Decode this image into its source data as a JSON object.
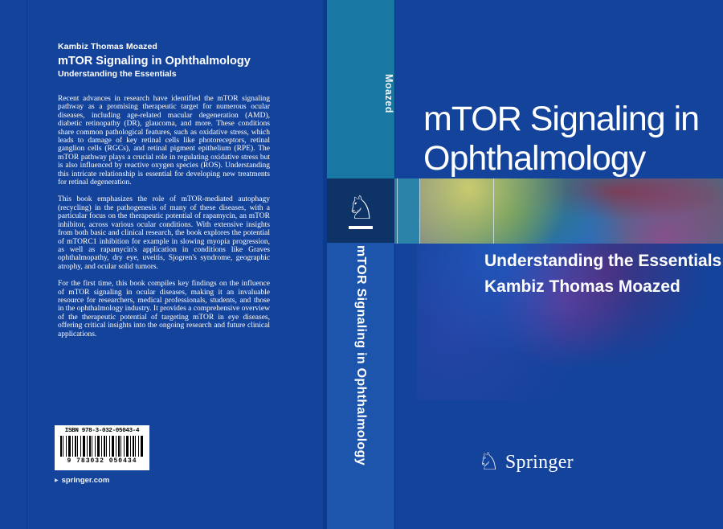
{
  "back_cover": {
    "author": "Kambiz Thomas Moazed",
    "title": "mTOR Signaling in Ophthalmology",
    "subtitle": "Understanding the Essentials",
    "paragraphs": {
      "p1": "Recent advances in research have identified the mTOR signaling pathway as a promising therapeutic target for numerous ocular diseases, including age-related macular degeneration (AMD), diabetic retinopathy (DR), glaucoma, and more. These conditions share common pathological features, such as oxidative stress, which leads to damage of key retinal cells like photoreceptors, retinal ganglion cells (RGCs), and retinal pigment epithelium (RPE). The mTOR pathway plays a crucial role in regulating oxidative stress but is also influenced by reactive oxygen species (ROS). Understanding this intricate relationship is essential for developing new treatments for retinal degeneration.",
      "p2": "This book emphasizes the role of mTOR-mediated autophagy (recycling) in the pathogenesis of many of these diseases, with a particular focus on the therapeutic potential of rapamycin, an mTOR inhibitor, across various ocular conditions. With extensive insights from both basic and clinical research, the book explores the potential of mTORC1 inhibition for example in slowing myopia progression, as well as rapamycin's application in conditions like Graves ophthalmopathy, dry eye, uveitis, Sjogren's syndrome, geographic atrophy, and ocular solid tumors.",
      "p3": "For the first time, this book compiles key findings on the influence of mTOR signaling in ocular diseases, making it an invaluable resource for researchers, medical professionals, students, and those in the ophthalmology industry. It provides a comprehensive overview of the therapeutic potential of targeting mTOR in eye diseases, offering critical insights into the ongoing research and future clinical applications."
    },
    "isbn_label": "ISBN 978-3-032-05043-4",
    "barcode_digits": "9 783032 050434",
    "website_arrow": "▶",
    "website": "springer.com"
  },
  "spine": {
    "author": "Moazed",
    "title": "mTOR Signaling in Ophthalmology",
    "horse_icon": "♘"
  },
  "front_cover": {
    "title_line1": "mTOR Signaling in",
    "title_line2": "Ophthalmology",
    "subtitle": "Understanding the Essentials",
    "author": "Kambiz Thomas Moazed",
    "publisher": "Springer",
    "horse_icon": "♘"
  },
  "colors": {
    "cover_blue": "#14439B",
    "spine_teal": "#1878A3",
    "logo_navy": "#0E3366",
    "spine_bottom_blue": "#1E55AC",
    "band_teal_block": "#2B83A9"
  }
}
